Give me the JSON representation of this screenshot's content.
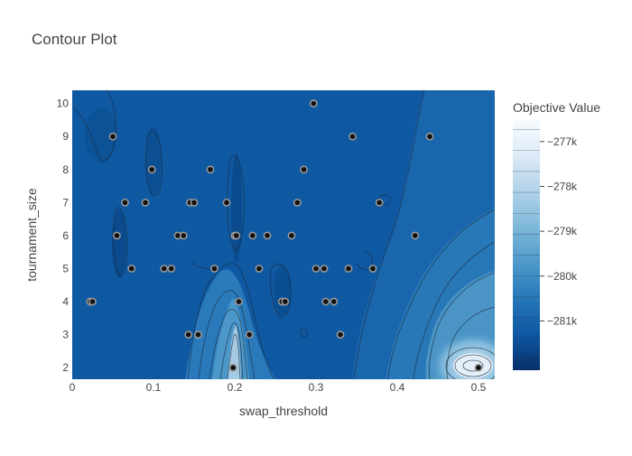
{
  "chart_data": {
    "type": "contour",
    "title": "Contour Plot",
    "xlabel": "swap_threshold",
    "ylabel": "tournament_size",
    "xlim": [
      0,
      0.52
    ],
    "ylim": [
      1.65,
      10.4
    ],
    "x_ticks": [
      0,
      0.1,
      0.2,
      0.3,
      0.4,
      0.5
    ],
    "x_tick_labels": [
      "0",
      "0.1",
      "0.2",
      "0.3",
      "0.4",
      "0.5"
    ],
    "y_ticks": [
      2,
      3,
      4,
      5,
      6,
      7,
      8,
      9,
      10
    ],
    "y_tick_labels": [
      "2",
      "3",
      "4",
      "5",
      "6",
      "7",
      "8",
      "9",
      "10"
    ],
    "colorbar": {
      "title": "Objective Value",
      "range": [
        -282100,
        -276500
      ],
      "ticks": [
        -277000,
        -278000,
        -279000,
        -280000,
        -281000
      ],
      "tick_labels": [
        "−277k",
        "−278k",
        "−279k",
        "−280k",
        "−281k"
      ],
      "colors": [
        "#08306b",
        "#0d57a1",
        "#2676b8",
        "#4b97c9",
        "#7db8da",
        "#b0d2e8",
        "#deebf7",
        "#f7fbff"
      ]
    },
    "points": [
      {
        "x": 0.022,
        "y": 4
      },
      {
        "x": 0.025,
        "y": 4
      },
      {
        "x": 0.05,
        "y": 9
      },
      {
        "x": 0.055,
        "y": 6
      },
      {
        "x": 0.065,
        "y": 7
      },
      {
        "x": 0.073,
        "y": 5
      },
      {
        "x": 0.09,
        "y": 7
      },
      {
        "x": 0.098,
        "y": 8
      },
      {
        "x": 0.113,
        "y": 5
      },
      {
        "x": 0.122,
        "y": 5
      },
      {
        "x": 0.13,
        "y": 6
      },
      {
        "x": 0.137,
        "y": 6
      },
      {
        "x": 0.143,
        "y": 3
      },
      {
        "x": 0.145,
        "y": 7
      },
      {
        "x": 0.15,
        "y": 7
      },
      {
        "x": 0.155,
        "y": 3
      },
      {
        "x": 0.17,
        "y": 8
      },
      {
        "x": 0.175,
        "y": 5
      },
      {
        "x": 0.19,
        "y": 7
      },
      {
        "x": 0.198,
        "y": 2
      },
      {
        "x": 0.2,
        "y": 6
      },
      {
        "x": 0.202,
        "y": 6
      },
      {
        "x": 0.205,
        "y": 4
      },
      {
        "x": 0.218,
        "y": 3
      },
      {
        "x": 0.222,
        "y": 6
      },
      {
        "x": 0.23,
        "y": 5
      },
      {
        "x": 0.24,
        "y": 6
      },
      {
        "x": 0.258,
        "y": 4
      },
      {
        "x": 0.262,
        "y": 4
      },
      {
        "x": 0.27,
        "y": 6
      },
      {
        "x": 0.277,
        "y": 7
      },
      {
        "x": 0.285,
        "y": 8
      },
      {
        "x": 0.297,
        "y": 10
      },
      {
        "x": 0.3,
        "y": 5
      },
      {
        "x": 0.31,
        "y": 5
      },
      {
        "x": 0.312,
        "y": 4
      },
      {
        "x": 0.322,
        "y": 4
      },
      {
        "x": 0.33,
        "y": 3
      },
      {
        "x": 0.34,
        "y": 5
      },
      {
        "x": 0.345,
        "y": 9
      },
      {
        "x": 0.37,
        "y": 5
      },
      {
        "x": 0.378,
        "y": 7
      },
      {
        "x": 0.422,
        "y": 6
      },
      {
        "x": 0.44,
        "y": 9
      },
      {
        "x": 0.5,
        "y": 2
      }
    ]
  }
}
